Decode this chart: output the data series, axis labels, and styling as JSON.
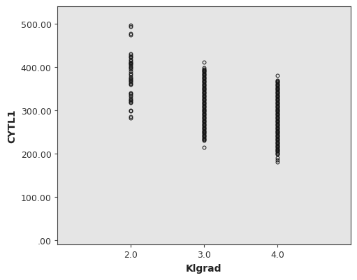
{
  "title": "",
  "xlabel": "Klgrad",
  "ylabel": "CYTL1",
  "plot_bg_color": "#e5e5e5",
  "fig_bg_color": "#ffffff",
  "xlim": [
    1.0,
    5.0
  ],
  "ylim": [
    -10.0,
    540.0
  ],
  "yticks": [
    0.0,
    100.0,
    200.0,
    300.0,
    400.0,
    500.0
  ],
  "ytick_labels": [
    ".00",
    "100.00",
    "200.00",
    "300.00",
    "400.00",
    "500.00"
  ],
  "xticks": [
    2.0,
    3.0,
    4.0
  ],
  "xtick_labels": [
    "2.0",
    "3.0",
    "4.0"
  ],
  "group2_values": [
    497,
    493,
    478,
    475,
    430,
    428,
    425,
    422,
    418,
    415,
    412,
    410,
    408,
    406,
    403,
    400,
    398,
    396,
    390,
    386,
    382,
    378,
    375,
    372,
    370,
    368,
    365,
    362,
    360,
    340,
    338,
    335,
    332,
    328,
    325,
    322,
    320,
    318,
    300,
    298,
    285,
    282
  ],
  "group3_values": [
    412,
    398,
    396,
    394,
    392,
    390,
    388,
    386,
    384,
    382,
    380,
    378,
    376,
    374,
    372,
    370,
    368,
    366,
    364,
    362,
    360,
    358,
    356,
    354,
    352,
    350,
    348,
    346,
    344,
    342,
    340,
    338,
    336,
    334,
    332,
    330,
    328,
    326,
    324,
    322,
    320,
    318,
    316,
    314,
    312,
    310,
    308,
    306,
    304,
    302,
    300,
    298,
    296,
    294,
    292,
    290,
    288,
    286,
    284,
    282,
    280,
    278,
    276,
    274,
    272,
    270,
    268,
    266,
    264,
    262,
    260,
    258,
    256,
    254,
    252,
    250,
    248,
    246,
    244,
    242,
    240,
    238,
    236,
    234,
    232,
    230,
    215
  ],
  "group4_values": [
    380,
    370,
    368,
    366,
    364,
    362,
    360,
    358,
    356,
    354,
    352,
    350,
    348,
    346,
    344,
    342,
    340,
    338,
    336,
    334,
    332,
    330,
    328,
    326,
    324,
    322,
    320,
    318,
    316,
    314,
    312,
    310,
    308,
    306,
    304,
    302,
    300,
    298,
    296,
    294,
    292,
    290,
    288,
    286,
    284,
    282,
    280,
    278,
    276,
    274,
    272,
    270,
    268,
    266,
    264,
    262,
    260,
    258,
    256,
    254,
    252,
    250,
    248,
    246,
    244,
    242,
    240,
    238,
    236,
    234,
    232,
    230,
    228,
    226,
    224,
    222,
    220,
    218,
    216,
    214,
    212,
    210,
    208,
    206,
    204,
    202,
    200,
    198,
    190,
    185,
    180
  ],
  "marker_facecolor": "none",
  "marker_edge_color": "#111111",
  "marker_edge_width": 0.7,
  "marker_size": 3.5,
  "jitter_std": 0.0
}
